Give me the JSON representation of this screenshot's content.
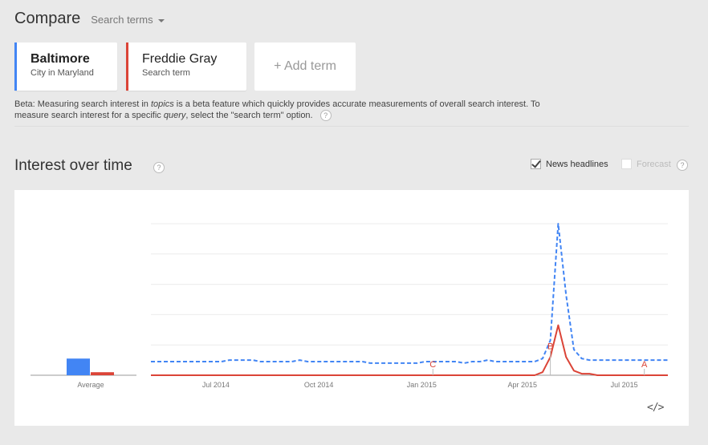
{
  "header": {
    "title": "Compare",
    "search_terms_label": "Search terms"
  },
  "terms": [
    {
      "name": "Baltimore",
      "subtitle": "City in Maryland",
      "color": "#4285f4"
    },
    {
      "name": "Freddie Gray",
      "subtitle": "Search term",
      "color": "#db4437"
    }
  ],
  "add_term_label": "+ Add term",
  "beta_note": {
    "part1": "Beta: Measuring search interest in ",
    "topics": "topics",
    "part2": " is a beta feature which quickly provides accurate measurements of overall search interest. To measure search interest for a specific ",
    "query": "query",
    "part3": ", select the \"search term\" option."
  },
  "help_icon_text": "?",
  "interest_section": {
    "title": "Interest over time",
    "news_headlines_label": "News headlines",
    "news_headlines_checked": true,
    "forecast_label": "Forecast",
    "forecast_checked": false
  },
  "embed_icon_text": "</>",
  "chart_data": {
    "type": "line",
    "average_label": "Average",
    "averages": [
      {
        "name": "Baltimore",
        "value": 11
      },
      {
        "name": "Freddie Gray",
        "value": 2
      }
    ],
    "x_ticks": [
      "Jul 2014",
      "Oct 2014",
      "Jan 2015",
      "Apr 2015",
      "Jul 2015"
    ],
    "x_range": [
      "2014-05-04",
      "2015-08-09"
    ],
    "x": [
      "2014-05-04",
      "2014-05-11",
      "2014-05-18",
      "2014-05-25",
      "2014-06-01",
      "2014-06-08",
      "2014-06-15",
      "2014-06-22",
      "2014-06-29",
      "2014-07-06",
      "2014-07-13",
      "2014-07-20",
      "2014-07-27",
      "2014-08-03",
      "2014-08-10",
      "2014-08-17",
      "2014-08-24",
      "2014-08-31",
      "2014-09-07",
      "2014-09-14",
      "2014-09-21",
      "2014-09-28",
      "2014-10-05",
      "2014-10-12",
      "2014-10-19",
      "2014-10-26",
      "2014-11-02",
      "2014-11-09",
      "2014-11-16",
      "2014-11-23",
      "2014-11-30",
      "2014-12-07",
      "2014-12-14",
      "2014-12-21",
      "2014-12-28",
      "2015-01-04",
      "2015-01-11",
      "2015-01-18",
      "2015-01-25",
      "2015-02-01",
      "2015-02-08",
      "2015-02-15",
      "2015-02-22",
      "2015-03-01",
      "2015-03-08",
      "2015-03-15",
      "2015-03-22",
      "2015-03-29",
      "2015-04-05",
      "2015-04-12",
      "2015-04-19",
      "2015-04-26",
      "2015-05-03",
      "2015-05-10",
      "2015-05-17",
      "2015-05-24",
      "2015-05-31",
      "2015-06-07",
      "2015-06-14",
      "2015-06-21",
      "2015-06-28",
      "2015-07-05",
      "2015-07-12",
      "2015-07-19",
      "2015-07-26",
      "2015-08-02",
      "2015-08-09"
    ],
    "ylim": [
      0,
      100
    ],
    "series": [
      {
        "name": "Baltimore",
        "color": "#4285f4",
        "dash": true,
        "values": [
          9,
          9,
          9,
          9,
          9,
          9,
          9,
          9,
          9,
          9,
          10,
          10,
          10,
          10,
          9,
          9,
          9,
          9,
          9,
          10,
          9,
          9,
          9,
          9,
          9,
          9,
          9,
          9,
          8,
          8,
          8,
          8,
          8,
          8,
          8,
          9,
          9,
          9,
          9,
          9,
          8,
          9,
          9,
          10,
          9,
          9,
          9,
          9,
          9,
          9,
          11,
          23,
          100,
          53,
          17,
          11,
          10,
          10,
          10,
          10,
          10,
          10,
          10,
          10,
          10,
          10,
          10
        ]
      },
      {
        "name": "Freddie Gray",
        "color": "#db4437",
        "dash": false,
        "values": [
          0,
          0,
          0,
          0,
          0,
          0,
          0,
          0,
          0,
          0,
          0,
          0,
          0,
          0,
          0,
          0,
          0,
          0,
          0,
          0,
          0,
          0,
          0,
          0,
          0,
          0,
          0,
          0,
          0,
          0,
          0,
          0,
          0,
          0,
          0,
          0,
          0,
          0,
          0,
          0,
          0,
          0,
          0,
          0,
          0,
          0,
          0,
          0,
          0,
          0,
          2,
          12,
          33,
          12,
          3,
          1,
          1,
          0,
          0,
          0,
          0,
          0,
          0,
          0,
          0,
          0,
          0
        ]
      }
    ],
    "annotations": [
      {
        "letter": "A",
        "date": "2015-07-19",
        "color": "#db4437"
      },
      {
        "letter": "B",
        "date": "2015-04-26",
        "color": "#db4437"
      },
      {
        "letter": "C",
        "date": "2015-01-11",
        "color": "#db4437"
      }
    ],
    "grid": true,
    "legend": "none"
  }
}
